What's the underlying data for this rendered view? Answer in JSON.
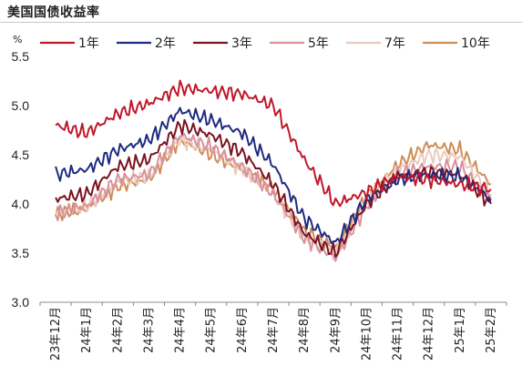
{
  "chart_data": {
    "type": "line",
    "title": "美国国债收益率",
    "unit_label": "%",
    "xlabel": "",
    "ylabel": "",
    "ylim": [
      3.0,
      5.5
    ],
    "yticks": [
      "3.0",
      "3.5",
      "4.0",
      "4.5",
      "5.0",
      "5.5"
    ],
    "categories": [
      "23年12月",
      "24年1月",
      "24年2月",
      "24年3月",
      "24年4月",
      "24年5月",
      "24年6月",
      "24年7月",
      "24年8月",
      "24年9月",
      "24年10月",
      "24年11月",
      "24年12月",
      "25年1月",
      "25年2月"
    ],
    "x": [
      "23-12",
      "24-01",
      "24-02",
      "24-03",
      "24-04",
      "24-05",
      "24-06",
      "24-07",
      "24-08",
      "24-09",
      "24-10",
      "24-11",
      "24-12",
      "25-01",
      "25-02"
    ],
    "legend_position": "top",
    "grid": false,
    "series": [
      {
        "name": "1年",
        "color": "#c0182b",
        "values": [
          4.8,
          4.72,
          4.92,
          5.02,
          5.18,
          5.15,
          5.12,
          5.0,
          4.45,
          4.0,
          4.12,
          4.28,
          4.25,
          4.2,
          4.15
        ]
      },
      {
        "name": "2年",
        "color": "#1f2b80",
        "values": [
          4.3,
          4.35,
          4.55,
          4.65,
          4.95,
          4.85,
          4.72,
          4.4,
          3.85,
          3.6,
          4.05,
          4.25,
          4.3,
          4.28,
          4.05
        ]
      },
      {
        "name": "3年",
        "color": "#7a1320",
        "values": [
          4.05,
          4.1,
          4.38,
          4.45,
          4.8,
          4.7,
          4.52,
          4.2,
          3.7,
          3.5,
          4.0,
          4.28,
          4.32,
          4.3,
          4.0
        ]
      },
      {
        "name": "5年",
        "color": "#d9909d",
        "values": [
          3.9,
          3.98,
          4.25,
          4.3,
          4.7,
          4.58,
          4.38,
          4.1,
          3.65,
          3.45,
          3.98,
          4.3,
          4.38,
          4.38,
          4.05
        ]
      },
      {
        "name": "7年",
        "color": "#eacbbd",
        "values": [
          3.9,
          3.98,
          4.22,
          4.28,
          4.65,
          4.55,
          4.35,
          4.1,
          3.65,
          3.48,
          4.02,
          4.35,
          4.5,
          4.48,
          4.1
        ]
      },
      {
        "name": "10年",
        "color": "#cf8d56",
        "values": [
          3.9,
          3.95,
          4.18,
          4.25,
          4.65,
          4.5,
          4.35,
          4.15,
          3.72,
          3.55,
          4.08,
          4.4,
          4.6,
          4.55,
          4.2
        ]
      }
    ]
  }
}
